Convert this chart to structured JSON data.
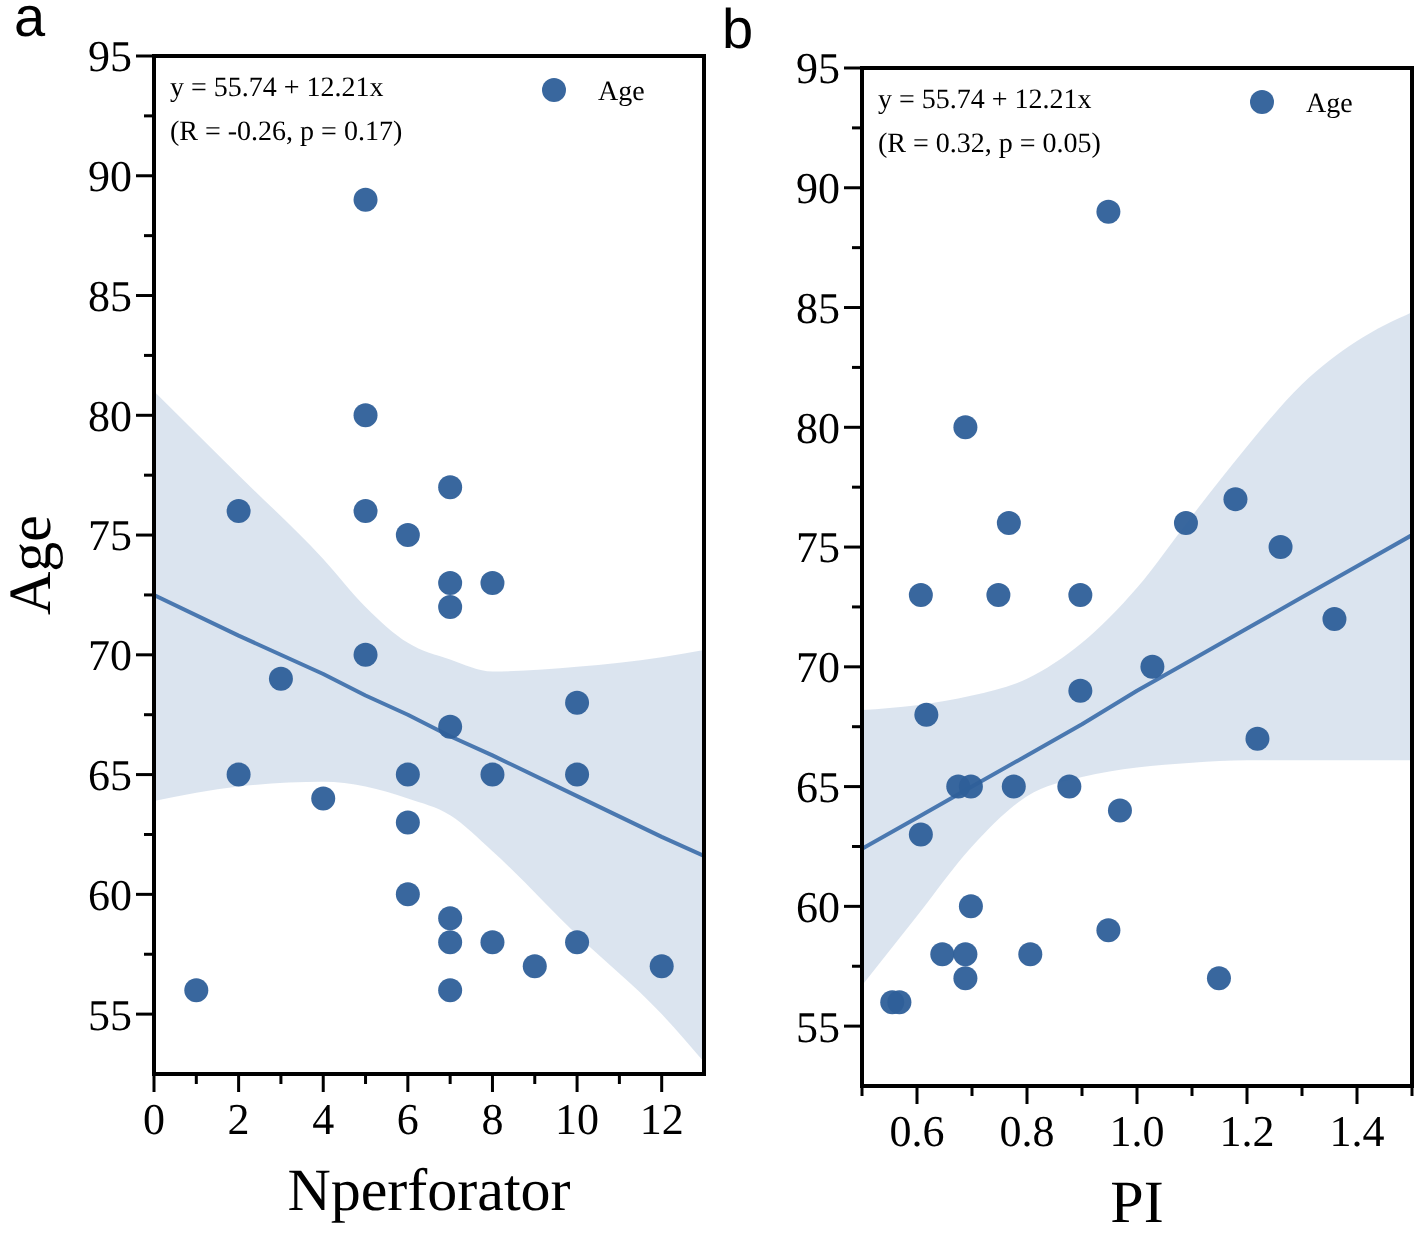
{
  "chart_data": [
    {
      "type": "scatter",
      "title": "a",
      "xlabel": "Nperforator",
      "ylabel": "Age",
      "annotations": [
        "y = 55.74 + 12.21x",
        "(R = -0.26, p = 0.17)"
      ],
      "xlim": [
        0,
        13
      ],
      "ylim": [
        52.5,
        95
      ],
      "xticks": [
        0,
        {
          "value": 1,
          "label": null
        },
        2,
        {
          "value": 3,
          "label": null
        },
        4,
        {
          "value": 5,
          "label": null
        },
        6,
        {
          "value": 7,
          "label": null
        },
        8,
        {
          "value": 9,
          "label": null
        },
        10,
        {
          "value": 11,
          "label": null
        },
        12
      ],
      "yticks": [
        55,
        {
          "value": 57.5,
          "label": null
        },
        60,
        {
          "value": 62.5,
          "label": null
        },
        65,
        {
          "value": 67.5,
          "label": null
        },
        70,
        {
          "value": 72.5,
          "label": null
        },
        75,
        {
          "value": 77.5,
          "label": null
        },
        80,
        {
          "value": 82.5,
          "label": null
        },
        85,
        {
          "value": 87.5,
          "label": null
        },
        90,
        {
          "value": 92.5,
          "label": null
        },
        95
      ],
      "grid": false,
      "legend": "top right",
      "marker": "circle",
      "line_style": "solid",
      "series": [
        {
          "type": "line",
          "marker": "none",
          "color": "#4a78b0",
          "x": [
            0,
            2,
            4,
            5,
            6,
            7,
            8,
            10,
            12,
            13
          ],
          "values": [
            72.5,
            70.8,
            69.2,
            68.3,
            67.5,
            66.6,
            65.8,
            64.1,
            62.4,
            61.6
          ],
          "upper": [
            81,
            77.5,
            74,
            72,
            70.5,
            69.8,
            69.3,
            69.5,
            69.9,
            70.2
          ],
          "lower": [
            63.9,
            64.5,
            64.7,
            64.5,
            64,
            63.3,
            61.8,
            58.3,
            55,
            53
          ]
        },
        {
          "name": "Age",
          "color": "#2e5f99",
          "x": [
            1,
            2,
            2,
            3,
            4,
            5,
            5,
            5,
            5,
            6,
            6,
            6,
            6,
            7,
            7,
            7,
            7,
            7,
            7,
            7,
            8,
            8,
            8,
            9,
            10,
            10,
            10,
            12
          ],
          "values": [
            56,
            76,
            65,
            69,
            64,
            89,
            80,
            76,
            70,
            75,
            65,
            63,
            60,
            77,
            73,
            72,
            67,
            59,
            58,
            56,
            73,
            65,
            58,
            57,
            68,
            65,
            58,
            57
          ]
        }
      ]
    },
    {
      "type": "scatter",
      "title": "b",
      "xlabel": "PI",
      "annotations": [
        "y = 55.74 + 12.21x",
        "(R = 0.32, p = 0.05)"
      ],
      "xlim": [
        0.5,
        1.5
      ],
      "ylim": [
        52.5,
        95
      ],
      "xticks": [
        {
          "value": 0.5,
          "label": null
        },
        0.6,
        {
          "value": 0.7,
          "label": null
        },
        0.8,
        {
          "value": 0.9,
          "label": null
        },
        {
          "value": 1,
          "label": "1.0"
        },
        {
          "value": 1.1,
          "label": null
        },
        1.2,
        {
          "value": 1.3,
          "label": null
        },
        1.4,
        {
          "value": 1.5,
          "label": null
        }
      ],
      "yticks": [
        55,
        {
          "value": 57.5,
          "label": null
        },
        60,
        {
          "value": 62.5,
          "label": null
        },
        65,
        {
          "value": 67.5,
          "label": null
        },
        70,
        {
          "value": 72.5,
          "label": null
        },
        75,
        {
          "value": 77.5,
          "label": null
        },
        80,
        {
          "value": 82.5,
          "label": null
        },
        85,
        {
          "value": 87.5,
          "label": null
        },
        90,
        {
          "value": 92.5,
          "label": null
        },
        95
      ],
      "grid": false,
      "legend": "top right",
      "marker": "circle",
      "line_style": "solid",
      "series": [
        {
          "type": "line",
          "marker": "none",
          "color": "#4a78b0",
          "x": [
            0.5,
            0.6,
            0.7,
            0.8,
            0.9,
            1.0,
            1.1,
            1.2,
            1.3,
            1.4,
            1.5
          ],
          "values": [
            62.4,
            63.7,
            65,
            66.3,
            67.6,
            69,
            70.3,
            71.6,
            72.9,
            74.2,
            75.5
          ],
          "upper": [
            68.2,
            68.4,
            68.8,
            69.5,
            71,
            73.3,
            76.3,
            79.2,
            81.8,
            83.6,
            84.8
          ],
          "lower": [
            56.7,
            59.6,
            62.5,
            64.6,
            65.4,
            65.8,
            66,
            66.1,
            66.1,
            66.1,
            66.1
          ]
        },
        {
          "name": "Age",
          "color": "#2e5f99",
          "x": [
            0.555,
            0.568,
            0.607,
            0.617,
            0.607,
            0.646,
            0.688,
            0.675,
            0.698,
            0.688,
            0.688,
            0.698,
            0.767,
            0.748,
            0.776,
            0.806,
            0.877,
            0.897,
            0.897,
            0.948,
            0.948,
            0.969,
            1.028,
            1.089,
            1.149,
            1.179,
            1.219,
            1.261,
            1.359
          ],
          "values": [
            56,
            56,
            73,
            68,
            63,
            58,
            80,
            65,
            65,
            58,
            57,
            60,
            76,
            73,
            65,
            58,
            65,
            73,
            69,
            89,
            59,
            64,
            70,
            76,
            57,
            77,
            67,
            75,
            72
          ]
        }
      ]
    }
  ]
}
